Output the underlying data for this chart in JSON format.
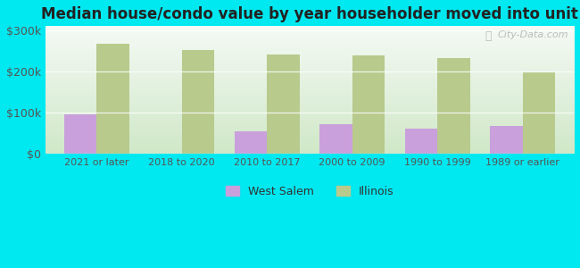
{
  "title": "Median house/condo value by year householder moved into unit",
  "categories": [
    "2021 or later",
    "2018 to 2020",
    "2010 to 2017",
    "2000 to 2009",
    "1990 to 1999",
    "1989 or earlier"
  ],
  "west_salem": [
    95000,
    0,
    55000,
    72000,
    62000,
    68000
  ],
  "illinois": [
    268000,
    253000,
    241000,
    240000,
    232000,
    198000
  ],
  "west_salem_color": "#c9a0dc",
  "illinois_color": "#b8ca8c",
  "outer_background": "#00e8f0",
  "ylim": [
    0,
    310000
  ],
  "yticks": [
    0,
    100000,
    200000,
    300000
  ],
  "ytick_labels": [
    "$0",
    "$100k",
    "$200k",
    "$300k"
  ],
  "bar_width": 0.38,
  "legend_west_salem": "West Salem",
  "legend_illinois": "Illinois",
  "watermark": "City-Data.com"
}
